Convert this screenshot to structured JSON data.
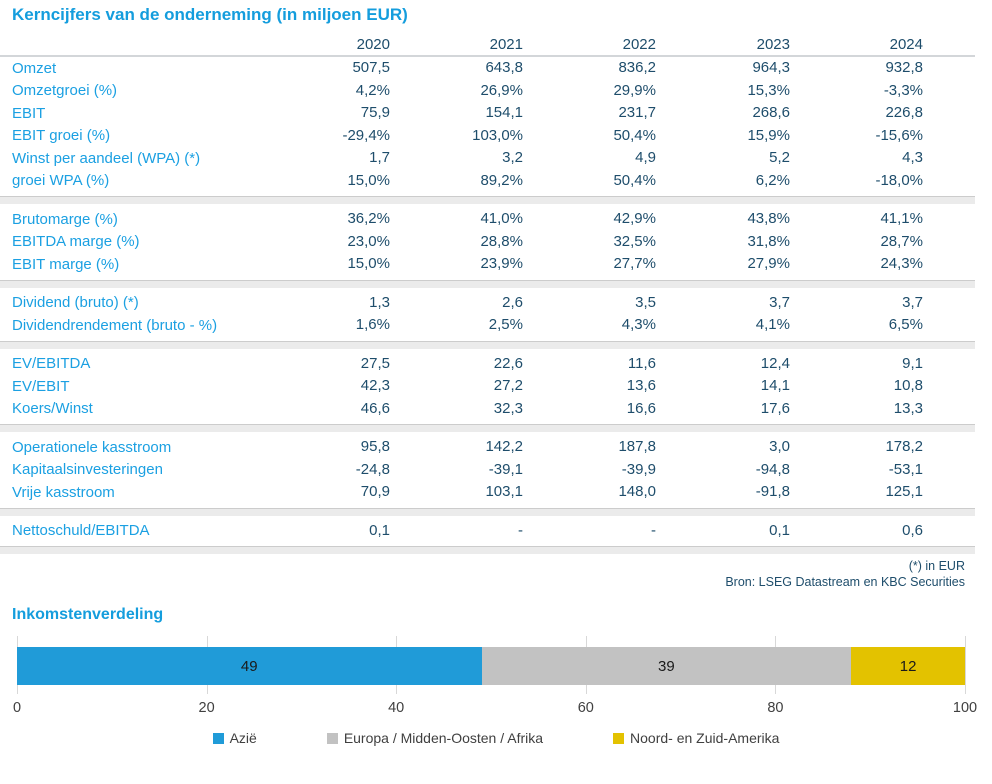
{
  "table": {
    "title": "Kerncijfers van de onderneming (in miljoen EUR)",
    "years": [
      "2020",
      "2021",
      "2022",
      "2023",
      "2024"
    ],
    "sections": [
      {
        "rows": [
          {
            "label": "Omzet",
            "values": [
              "507,5",
              "643,8",
              "836,2",
              "964,3",
              "932,8"
            ]
          },
          {
            "label": "Omzetgroei (%)",
            "values": [
              "4,2%",
              "26,9%",
              "29,9%",
              "15,3%",
              "-3,3%"
            ]
          },
          {
            "label": "EBIT",
            "values": [
              "75,9",
              "154,1",
              "231,7",
              "268,6",
              "226,8"
            ]
          },
          {
            "label": "EBIT groei (%)",
            "values": [
              "-29,4%",
              "103,0%",
              "50,4%",
              "15,9%",
              "-15,6%"
            ]
          },
          {
            "label": "Winst per aandeel (WPA) (*)",
            "values": [
              "1,7",
              "3,2",
              "4,9",
              "5,2",
              "4,3"
            ]
          },
          {
            "label": "groei WPA (%)",
            "values": [
              "15,0%",
              "89,2%",
              "50,4%",
              "6,2%",
              "-18,0%"
            ]
          }
        ]
      },
      {
        "rows": [
          {
            "label": "Brutomarge (%)",
            "values": [
              "36,2%",
              "41,0%",
              "42,9%",
              "43,8%",
              "41,1%"
            ]
          },
          {
            "label": "EBITDA marge (%)",
            "values": [
              "23,0%",
              "28,8%",
              "32,5%",
              "31,8%",
              "28,7%"
            ]
          },
          {
            "label": "EBIT marge (%)",
            "values": [
              "15,0%",
              "23,9%",
              "27,7%",
              "27,9%",
              "24,3%"
            ]
          }
        ]
      },
      {
        "rows": [
          {
            "label": "Dividend (bruto) (*)",
            "values": [
              "1,3",
              "2,6",
              "3,5",
              "3,7",
              "3,7"
            ]
          },
          {
            "label": "Dividendrendement (bruto - %)",
            "values": [
              "1,6%",
              "2,5%",
              "4,3%",
              "4,1%",
              "6,5%"
            ]
          }
        ]
      },
      {
        "rows": [
          {
            "label": "EV/EBITDA",
            "values": [
              "27,5",
              "22,6",
              "11,6",
              "12,4",
              "9,1"
            ]
          },
          {
            "label": "EV/EBIT",
            "values": [
              "42,3",
              "27,2",
              "13,6",
              "14,1",
              "10,8"
            ]
          },
          {
            "label": "Koers/Winst",
            "values": [
              "46,6",
              "32,3",
              "16,6",
              "17,6",
              "13,3"
            ]
          }
        ]
      },
      {
        "rows": [
          {
            "label": "Operationele kasstroom",
            "values": [
              "95,8",
              "142,2",
              "187,8",
              "3,0",
              "178,2"
            ]
          },
          {
            "label": "Kapitaalsinvesteringen",
            "values": [
              "-24,8",
              "-39,1",
              "-39,9",
              "-94,8",
              "-53,1"
            ]
          },
          {
            "label": "Vrije kasstroom",
            "values": [
              "70,9",
              "103,1",
              "148,0",
              "-91,8",
              "125,1"
            ]
          }
        ]
      },
      {
        "rows": [
          {
            "label": "Nettoschuld/EBITDA",
            "values": [
              "0,1",
              "-",
              "-",
              "0,1",
              "0,6"
            ]
          }
        ]
      }
    ],
    "footnotes": [
      "(*) in EUR",
      "Bron: LSEG Datastream en KBC Securities"
    ]
  },
  "chart_data": {
    "type": "bar",
    "orientation": "horizontal-stacked",
    "title": "Inkomstenverdeling",
    "series": [
      {
        "name": "Azië",
        "value": 49,
        "color": "#209bd8"
      },
      {
        "name": "Europa / Midden-Oosten / Afrika",
        "value": 39,
        "color": "#c2c2c2"
      },
      {
        "name": "Noord- en Zuid-Amerika",
        "value": 12,
        "color": "#e3c200"
      }
    ],
    "xticks": [
      0,
      20,
      40,
      60,
      80,
      100
    ],
    "xlim": [
      0,
      100
    ],
    "grid": true,
    "legend_position": "bottom"
  },
  "colors": {
    "accent_blue": "#149ddd",
    "label_blue": "#1ba0e2",
    "value_navy": "#1e4d6b",
    "band_gray": "#ebebeb",
    "gridline_gray": "#d8d8d8"
  }
}
